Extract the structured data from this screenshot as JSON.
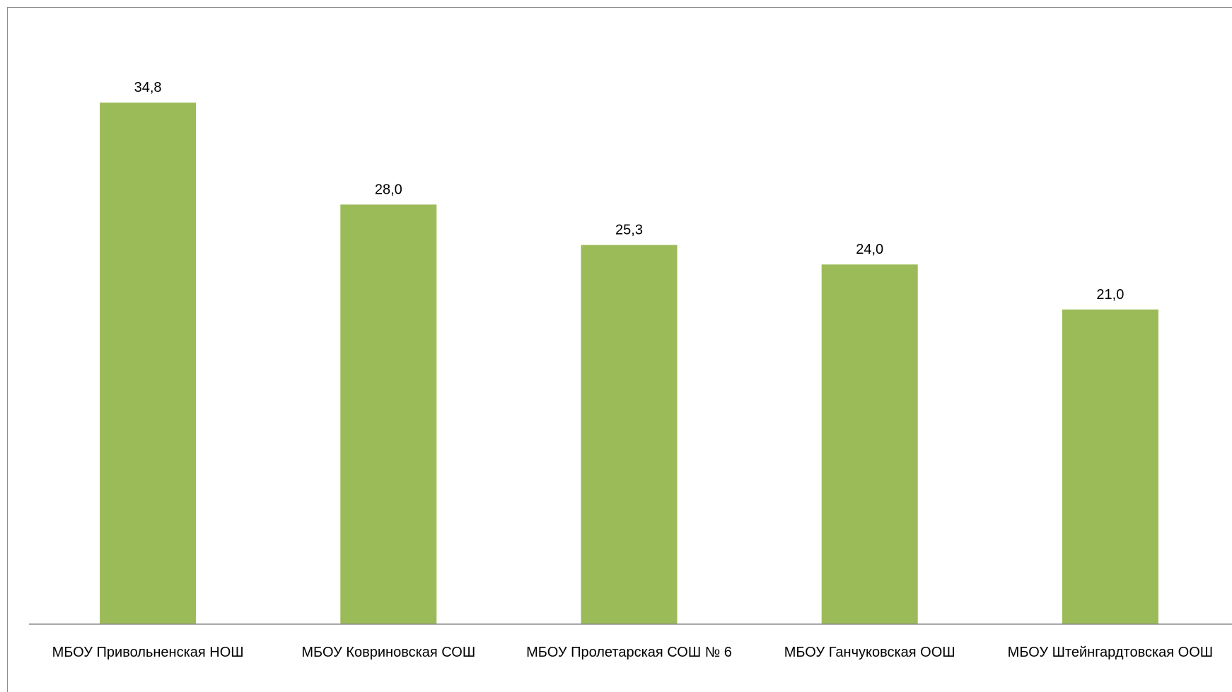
{
  "chart_data": {
    "type": "bar",
    "categories": [
      "МБОУ Привольненская НОШ",
      "МБОУ Ковриновская СОШ",
      "МБОУ Пролетарская СОШ № 6",
      "МБОУ Ганчуковская ООШ",
      "МБОУ Штейнгардтовская ООШ"
    ],
    "values": [
      34.8,
      28.0,
      25.3,
      24.0,
      21.0
    ],
    "data_labels": [
      "34,8",
      "28,0",
      "25,3",
      "24,0",
      "21,0"
    ],
    "title": "",
    "xlabel": "",
    "ylabel": "",
    "ylim": [
      0,
      40
    ],
    "grid": false,
    "legend": "none",
    "bar_color": "#9BBB59",
    "axis_color": "#8C8C8C"
  }
}
